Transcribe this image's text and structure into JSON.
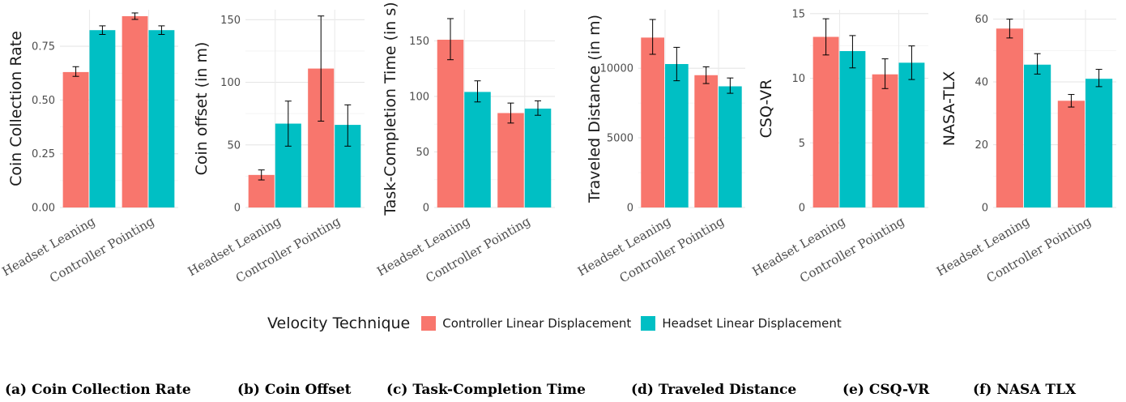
{
  "legend": {
    "title": "Velocity Technique",
    "items": [
      {
        "label": "Controller Linear Displacement",
        "color": "#F8766D"
      },
      {
        "label": "Headset Linear Displacement",
        "color": "#00BFC4"
      }
    ]
  },
  "captions": [
    "(a) Coin Collection Rate",
    "(b) Coin Offset",
    "(c) Task-Completion Time",
    "(d) Traveled Distance",
    "(e) CSQ-VR",
    "(f) NASA TLX"
  ],
  "chart_data": [
    {
      "type": "bar",
      "ylabel": "Coin Collection Rate",
      "categories": [
        "Headset Leaning",
        "Controller Pointing"
      ],
      "ylim": [
        0,
        0.92
      ],
      "yticks": [
        0,
        0.25,
        0.5,
        0.75
      ],
      "ytick_labels": [
        "0.00",
        "0.25",
        "0.50",
        "0.75"
      ],
      "series": [
        {
          "name": "Controller Linear Displacement",
          "values": [
            0.63,
            0.89
          ],
          "err_low": [
            0.61,
            0.875
          ],
          "err_high": [
            0.655,
            0.905
          ]
        },
        {
          "name": "Headset Linear Displacement",
          "values": [
            0.825,
            0.825
          ],
          "err_low": [
            0.805,
            0.805
          ],
          "err_high": [
            0.845,
            0.845
          ]
        }
      ]
    },
    {
      "type": "bar",
      "ylabel": "Coin offset (in m)",
      "categories": [
        "Headset Leaning",
        "Controller Pointing"
      ],
      "ylim": [
        0,
        158
      ],
      "yticks": [
        0,
        50,
        100,
        150
      ],
      "ytick_labels": [
        "0",
        "50",
        "100",
        "150"
      ],
      "series": [
        {
          "name": "Controller Linear Displacement",
          "values": [
            26,
            111
          ],
          "err_low": [
            22,
            69
          ],
          "err_high": [
            30,
            153
          ]
        },
        {
          "name": "Headset Linear Displacement",
          "values": [
            67,
            66
          ],
          "err_low": [
            49,
            49
          ],
          "err_high": [
            85,
            82
          ]
        }
      ]
    },
    {
      "type": "bar",
      "ylabel": "Task-Completion Time (in s)",
      "categories": [
        "Headset Leaning",
        "Controller Pointing"
      ],
      "ylim": [
        0,
        178
      ],
      "yticks": [
        0,
        50,
        100,
        150
      ],
      "ytick_labels": [
        "0",
        "50",
        "100",
        "150"
      ],
      "series": [
        {
          "name": "Controller Linear Displacement",
          "values": [
            151,
            85
          ],
          "err_low": [
            133,
            76
          ],
          "err_high": [
            170,
            94
          ]
        },
        {
          "name": "Headset Linear Displacement",
          "values": [
            104,
            89
          ],
          "err_low": [
            95,
            83
          ],
          "err_high": [
            114,
            96
          ]
        }
      ]
    },
    {
      "type": "bar",
      "ylabel": "Traveled Distance (in m)",
      "categories": [
        "Headset Leaning",
        "Controller Pointing"
      ],
      "ylim": [
        0,
        14200
      ],
      "yticks": [
        0,
        5000,
        10000
      ],
      "ytick_labels": [
        "0",
        "5000",
        "10000"
      ],
      "series": [
        {
          "name": "Controller Linear Displacement",
          "values": [
            12200,
            9500
          ],
          "err_low": [
            11000,
            8900
          ],
          "err_high": [
            13500,
            10100
          ]
        },
        {
          "name": "Headset Linear Displacement",
          "values": [
            10300,
            8700
          ],
          "err_low": [
            9100,
            8200
          ],
          "err_high": [
            11500,
            9300
          ]
        }
      ]
    },
    {
      "type": "bar",
      "ylabel": "CSQ-VR",
      "categories": [
        "Headset Leaning",
        "Controller Pointing"
      ],
      "ylim": [
        0,
        15.3
      ],
      "yticks": [
        0,
        5,
        10,
        15
      ],
      "ytick_labels": [
        "0",
        "5",
        "10",
        "15"
      ],
      "series": [
        {
          "name": "Controller Linear Displacement",
          "values": [
            13.2,
            10.3
          ],
          "err_low": [
            11.8,
            9.2
          ],
          "err_high": [
            14.6,
            11.5
          ]
        },
        {
          "name": "Headset Linear Displacement",
          "values": [
            12.1,
            11.2
          ],
          "err_low": [
            10.8,
            9.9
          ],
          "err_high": [
            13.3,
            12.5
          ]
        }
      ]
    },
    {
      "type": "bar",
      "ylabel": "NASA-TLX",
      "categories": [
        "Headset Leaning",
        "Controller Pointing"
      ],
      "ylim": [
        0,
        63
      ],
      "yticks": [
        0,
        20,
        40,
        60
      ],
      "ytick_labels": [
        "0",
        "20",
        "40",
        "60"
      ],
      "series": [
        {
          "name": "Controller Linear Displacement",
          "values": [
            57,
            34
          ],
          "err_low": [
            54,
            32
          ],
          "err_high": [
            60,
            36
          ]
        },
        {
          "name": "Headset Linear Displacement",
          "values": [
            45.5,
            41
          ],
          "err_low": [
            42.5,
            38.5
          ],
          "err_high": [
            49,
            44
          ]
        }
      ]
    }
  ]
}
